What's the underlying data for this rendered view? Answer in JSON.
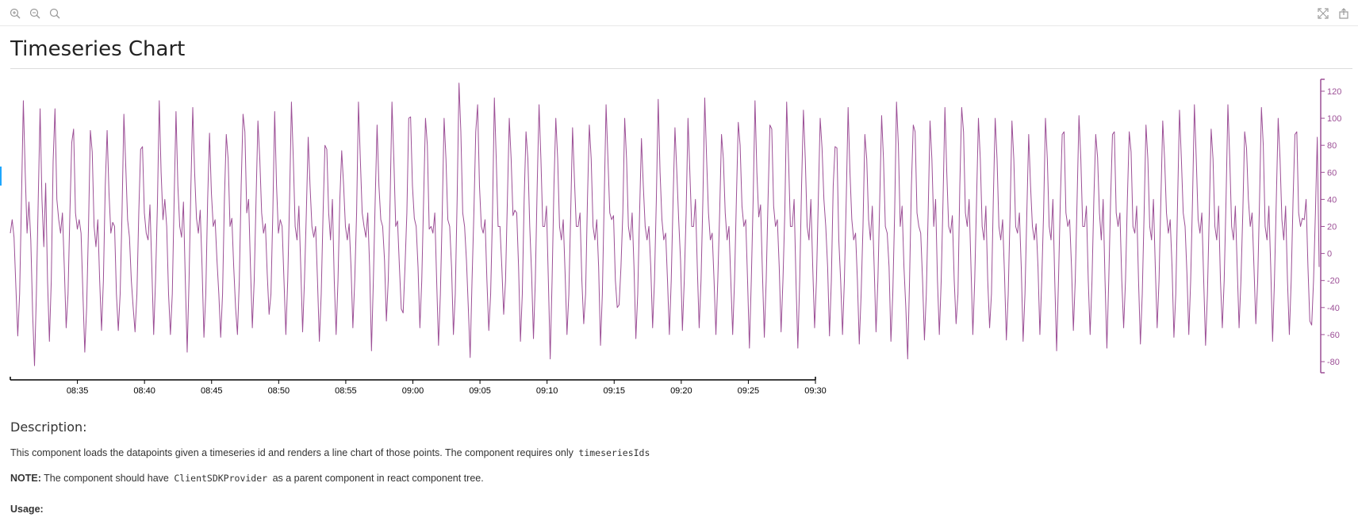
{
  "toolbar": {
    "left_icons": [
      "zoom-in-icon",
      "zoom-out-icon",
      "reset-zoom-icon"
    ],
    "right_icons": [
      "fullscreen-icon",
      "share-icon"
    ]
  },
  "page": {
    "title": "Timeseries Chart"
  },
  "colors": {
    "series": "#9c4f96",
    "axis": "#000000",
    "right_axis": "#9c4f96"
  },
  "chart_data": {
    "type": "line",
    "x_ticks": [
      "08:35",
      "08:40",
      "08:45",
      "08:50",
      "08:55",
      "09:00",
      "09:05",
      "09:10",
      "09:15",
      "09:20",
      "09:25",
      "09:30"
    ],
    "x_range": [
      "08:30",
      "09:30"
    ],
    "y_ticks": [
      120,
      100,
      80,
      60,
      40,
      20,
      0,
      -20,
      -40,
      -60,
      -80
    ],
    "ylim": [
      -88,
      130
    ],
    "y_axis_side": "right",
    "series": [
      {
        "values": [
          15,
          25,
          12,
          -25,
          -61,
          -30,
          40,
          113,
          60,
          15,
          38,
          10,
          -45,
          -83,
          -30,
          40,
          107,
          40,
          5,
          52,
          -20,
          -65,
          -20,
          68,
          107,
          40,
          25,
          15,
          30,
          -10,
          -55,
          -30,
          30,
          82,
          92,
          30,
          18,
          25,
          15,
          -30,
          -73,
          -40,
          20,
          91,
          75,
          20,
          5,
          25,
          -20,
          -57,
          -20,
          50,
          91,
          45,
          15,
          23,
          20,
          -30,
          -57,
          -30,
          30,
          103,
          65,
          25,
          12,
          -20,
          -40,
          -58,
          -30,
          30,
          77,
          79,
          30,
          15,
          10,
          36,
          -10,
          -60,
          -20,
          35,
          113,
          60,
          25,
          40,
          20,
          -30,
          -60,
          -30,
          40,
          105,
          50,
          20,
          12,
          38,
          -20,
          -73,
          -20,
          50,
          108,
          60,
          26,
          15,
          32,
          -10,
          -62,
          -30,
          40,
          89,
          45,
          20,
          25,
          -5,
          -30,
          -62,
          -30,
          40,
          88,
          70,
          20,
          26,
          -10,
          -40,
          -60,
          -20,
          50,
          103,
          90,
          30,
          40,
          -10,
          -55,
          -20,
          40,
          98,
          70,
          30,
          15,
          22,
          -15,
          -45,
          -30,
          30,
          105,
          50,
          15,
          25,
          20,
          -20,
          -60,
          -20,
          40,
          112,
          70,
          20,
          10,
          35,
          -10,
          -58,
          -20,
          30,
          86,
          50,
          20,
          12,
          20,
          -20,
          -65,
          -30,
          30,
          80,
          77,
          30,
          10,
          40,
          -20,
          -60,
          -20,
          40,
          76,
          51,
          20,
          10,
          22,
          -10,
          -55,
          -20,
          30,
          112,
          70,
          30,
          20,
          12,
          30,
          -10,
          -72,
          -20,
          40,
          95,
          50,
          25,
          20,
          -5,
          -50,
          -20,
          40,
          112,
          70,
          20,
          24,
          -10,
          -41,
          -44,
          -10,
          30,
          100,
          101,
          50,
          26,
          20,
          -10,
          -55,
          -20,
          40,
          100,
          80,
          18,
          20,
          15,
          30,
          -20,
          -68,
          -30,
          30,
          100,
          70,
          25,
          20,
          -10,
          -60,
          -30,
          40,
          126,
          90,
          30,
          20,
          -5,
          -40,
          -77,
          -20,
          30,
          90,
          110,
          50,
          20,
          15,
          25,
          -20,
          -57,
          -30,
          30,
          115,
          70,
          20,
          20,
          -10,
          -45,
          -20,
          40,
          100,
          70,
          28,
          32,
          30,
          -10,
          -65,
          -30,
          40,
          90,
          70,
          20,
          -15,
          -63,
          -20,
          50,
          110,
          70,
          20,
          20,
          35,
          -20,
          -78,
          -20,
          50,
          100,
          70,
          20,
          10,
          25,
          -15,
          -60,
          -30,
          30,
          93,
          55,
          20,
          20,
          30,
          -20,
          -52,
          -30,
          40,
          95,
          70,
          20,
          10,
          25,
          -10,
          -68,
          -30,
          40,
          110,
          70,
          30,
          25,
          28,
          -20,
          -40,
          -38,
          -10,
          30,
          100,
          70,
          20,
          10,
          30,
          -10,
          -63,
          -30,
          30,
          85,
          50,
          20,
          10,
          20,
          -10,
          -55,
          -20,
          40,
          114,
          60,
          25,
          10,
          15,
          -20,
          -60,
          -20,
          40,
          93,
          60,
          25,
          -5,
          -57,
          -20,
          30,
          100,
          60,
          20,
          20,
          40,
          -10,
          -55,
          -20,
          40,
          115,
          70,
          30,
          10,
          15,
          -20,
          -60,
          -20,
          30,
          88,
          70,
          30,
          10,
          20,
          -20,
          -60,
          -20,
          40,
          97,
          80,
          35,
          20,
          25,
          -20,
          -70,
          -20,
          40,
          113,
          60,
          27,
          36,
          -15,
          -62,
          -20,
          40,
          95,
          92,
          35,
          20,
          25,
          -10,
          -58,
          -20,
          30,
          112,
          70,
          20,
          20,
          40,
          -20,
          -70,
          -20,
          50,
          106,
          70,
          20,
          10,
          40,
          -10,
          -55,
          -20,
          40,
          100,
          78,
          40,
          20,
          -10,
          -61,
          -20,
          50,
          79,
          78,
          10,
          -20,
          -60,
          -20,
          40,
          108,
          60,
          25,
          10,
          15,
          -20,
          -67,
          -30,
          20,
          88,
          70,
          25,
          10,
          35,
          -10,
          -58,
          -20,
          40,
          102,
          70,
          20,
          15,
          -10,
          -65,
          -30,
          30,
          112,
          80,
          20,
          35,
          -10,
          -40,
          -78,
          -20,
          50,
          95,
          90,
          30,
          20,
          15,
          -20,
          -64,
          -30,
          30,
          98,
          70,
          20,
          40,
          -20,
          -60,
          -20,
          40,
          108,
          60,
          20,
          15,
          28,
          -20,
          -52,
          -30,
          50,
          108,
          90,
          30,
          20,
          40,
          -10,
          -60,
          -20,
          40,
          100,
          70,
          20,
          10,
          35,
          -20,
          -55,
          -30,
          40,
          100,
          70,
          20,
          10,
          25,
          -15,
          -64,
          -30,
          30,
          98,
          70,
          20,
          15,
          30,
          -10,
          -65,
          -30,
          30,
          88,
          50,
          20,
          10,
          22,
          -10,
          -60,
          -20,
          30,
          100,
          70,
          20,
          10,
          40,
          -20,
          -72,
          -20,
          40,
          88,
          90,
          30,
          20,
          25,
          -10,
          -57,
          -20,
          40,
          102,
          70,
          20,
          20,
          35,
          -20,
          -60,
          -20,
          40,
          88,
          71,
          30,
          10,
          40,
          -20,
          -70,
          -20,
          40,
          88,
          90,
          30,
          20,
          30,
          -20,
          -55,
          -20,
          40,
          90,
          75,
          20,
          15,
          35,
          -20,
          -67,
          -30,
          30,
          95,
          70,
          20,
          10,
          40,
          -10,
          -55,
          -20,
          40,
          98,
          70,
          30,
          15,
          25,
          -10,
          -62,
          -30,
          40,
          106,
          70,
          30,
          20,
          -15,
          -60,
          -20,
          40,
          110,
          70,
          25,
          15,
          30,
          -20,
          -68,
          -30,
          30,
          92,
          70,
          20,
          10,
          35,
          -20,
          -55,
          -20,
          40,
          110,
          70,
          20,
          10,
          35,
          -10,
          -55,
          -20,
          30,
          90,
          78,
          40,
          20,
          30,
          -10,
          -52,
          -20,
          40,
          108,
          80,
          20,
          10,
          35,
          -10,
          -65,
          -20,
          40,
          100,
          70,
          25,
          10,
          35,
          -20,
          -60,
          -20,
          40,
          88,
          90,
          30,
          20,
          26,
          25,
          40,
          -10,
          -50,
          -53,
          -20,
          30,
          86,
          -10
        ]
      }
    ]
  },
  "description": {
    "heading": "Description:",
    "para1_text": "This component loads the datapoints given a timeseries id and renders a line chart of those points. The component requires only",
    "para1_code": "timeseriesIds",
    "note_label": "NOTE:",
    "note_text_before": " The component should have",
    "note_code": "ClientSDKProvider",
    "note_text_after": "as a parent component in react component tree.",
    "usage_label": "Usage:"
  }
}
